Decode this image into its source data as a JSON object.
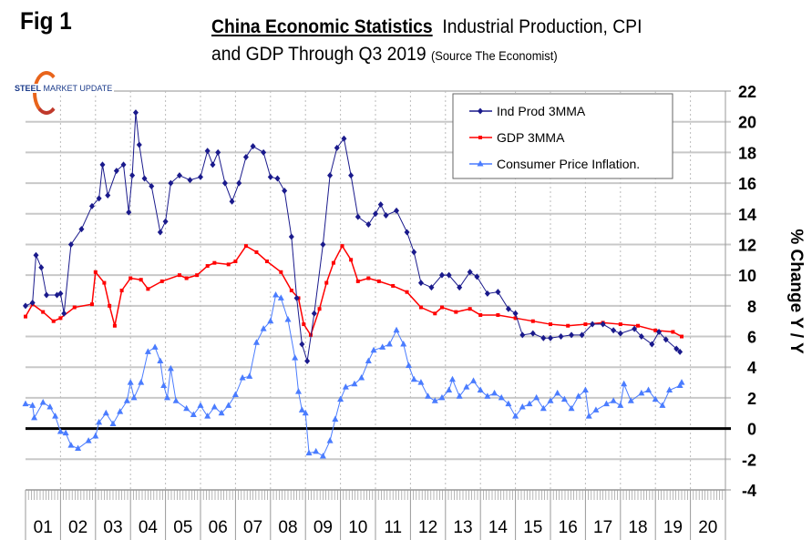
{
  "header": {
    "fig": "Fig 1",
    "title_bold": "China Economic Statistics",
    "title_rest": "Industrial Production, CPI",
    "subtitle": "and GDP Through Q3 2019",
    "source": "(Source The Economist)"
  },
  "logo": {
    "steel": "STEEL",
    "rest": "MARKET UPDATE"
  },
  "chart_data": {
    "type": "line",
    "title": "China Economic Statistics Industrial Production, CPI and GDP Through Q3 2019",
    "ylabel": "% Change Y / Y",
    "ylim": [
      -4,
      22
    ],
    "xlim": [
      2001,
      2021
    ],
    "yticks": [
      "22",
      "20",
      "18",
      "16",
      "14",
      "12",
      "10",
      "8",
      "6",
      "4",
      "2",
      "0",
      "-2",
      "-4"
    ],
    "xticks": [
      "01",
      "02",
      "03",
      "04",
      "05",
      "06",
      "07",
      "08",
      "09",
      "10",
      "11",
      "12",
      "13",
      "14",
      "15",
      "16",
      "17",
      "18",
      "19",
      "20"
    ],
    "grid": true,
    "legend_position": "top-right",
    "series": [
      {
        "name": "Ind Prod 3MMA",
        "color": "#1a1a8c",
        "marker": "diamond",
        "points": [
          [
            2001.0,
            8
          ],
          [
            2001.2,
            8.2
          ],
          [
            2001.3,
            11.3
          ],
          [
            2001.45,
            10.5
          ],
          [
            2001.6,
            8.7
          ],
          [
            2001.9,
            8.7
          ],
          [
            2002.0,
            8.8
          ],
          [
            2002.1,
            7.5
          ],
          [
            2002.3,
            12
          ],
          [
            2002.6,
            13
          ],
          [
            2002.9,
            14.5
          ],
          [
            2003.1,
            15
          ],
          [
            2003.2,
            17.2
          ],
          [
            2003.35,
            15.2
          ],
          [
            2003.6,
            16.8
          ],
          [
            2003.8,
            17.2
          ],
          [
            2003.95,
            14.1
          ],
          [
            2004.05,
            16.5
          ],
          [
            2004.15,
            20.6
          ],
          [
            2004.25,
            18.5
          ],
          [
            2004.4,
            16.3
          ],
          [
            2004.6,
            15.8
          ],
          [
            2004.85,
            12.8
          ],
          [
            2005.0,
            13.5
          ],
          [
            2005.15,
            16.0
          ],
          [
            2005.4,
            16.5
          ],
          [
            2005.7,
            16.2
          ],
          [
            2006.0,
            16.4
          ],
          [
            2006.2,
            18.1
          ],
          [
            2006.35,
            17.2
          ],
          [
            2006.5,
            18.0
          ],
          [
            2006.7,
            16.0
          ],
          [
            2006.9,
            14.8
          ],
          [
            2007.1,
            16.0
          ],
          [
            2007.3,
            17.7
          ],
          [
            2007.5,
            18.4
          ],
          [
            2007.8,
            18.0
          ],
          [
            2008.0,
            16.4
          ],
          [
            2008.2,
            16.3
          ],
          [
            2008.4,
            15.5
          ],
          [
            2008.6,
            12.5
          ],
          [
            2008.75,
            8.5
          ],
          [
            2008.9,
            5.5
          ],
          [
            2009.05,
            4.4
          ],
          [
            2009.25,
            7.5
          ],
          [
            2009.5,
            12.0
          ],
          [
            2009.7,
            16.5
          ],
          [
            2009.9,
            18.3
          ],
          [
            2010.1,
            18.9
          ],
          [
            2010.3,
            16.5
          ],
          [
            2010.5,
            13.8
          ],
          [
            2010.8,
            13.3
          ],
          [
            2011.0,
            14.0
          ],
          [
            2011.15,
            14.6
          ],
          [
            2011.3,
            13.9
          ],
          [
            2011.6,
            14.2
          ],
          [
            2011.9,
            12.8
          ],
          [
            2012.1,
            11.5
          ],
          [
            2012.3,
            9.5
          ],
          [
            2012.6,
            9.2
          ],
          [
            2012.9,
            10.0
          ],
          [
            2013.1,
            10.0
          ],
          [
            2013.4,
            9.2
          ],
          [
            2013.7,
            10.2
          ],
          [
            2013.9,
            9.9
          ],
          [
            2014.2,
            8.8
          ],
          [
            2014.5,
            8.9
          ],
          [
            2014.8,
            7.8
          ],
          [
            2015.0,
            7.5
          ],
          [
            2015.2,
            6.1
          ],
          [
            2015.5,
            6.2
          ],
          [
            2015.8,
            5.9
          ],
          [
            2016.0,
            5.9
          ],
          [
            2016.3,
            6.0
          ],
          [
            2016.6,
            6.1
          ],
          [
            2016.9,
            6.1
          ],
          [
            2017.2,
            6.8
          ],
          [
            2017.5,
            6.8
          ],
          [
            2017.8,
            6.4
          ],
          [
            2018.0,
            6.2
          ],
          [
            2018.4,
            6.5
          ],
          [
            2018.6,
            6.0
          ],
          [
            2018.9,
            5.5
          ],
          [
            2019.1,
            6.3
          ],
          [
            2019.3,
            5.8
          ],
          [
            2019.6,
            5.2
          ],
          [
            2019.7,
            5.0
          ]
        ]
      },
      {
        "name": "GDP 3MMA",
        "color": "#ff0000",
        "marker": "square",
        "points": [
          [
            2001.0,
            7.3
          ],
          [
            2001.2,
            8.1
          ],
          [
            2001.5,
            7.6
          ],
          [
            2001.8,
            7.0
          ],
          [
            2002.0,
            7.2
          ],
          [
            2002.4,
            7.9
          ],
          [
            2002.9,
            8.1
          ],
          [
            2003.0,
            10.2
          ],
          [
            2003.25,
            9.5
          ],
          [
            2003.4,
            8.0
          ],
          [
            2003.55,
            6.7
          ],
          [
            2003.75,
            9.0
          ],
          [
            2004.0,
            9.8
          ],
          [
            2004.3,
            9.7
          ],
          [
            2004.5,
            9.1
          ],
          [
            2004.9,
            9.6
          ],
          [
            2005.4,
            10.0
          ],
          [
            2005.6,
            9.8
          ],
          [
            2005.9,
            10.0
          ],
          [
            2006.2,
            10.6
          ],
          [
            2006.4,
            10.8
          ],
          [
            2006.8,
            10.7
          ],
          [
            2007.0,
            10.9
          ],
          [
            2007.3,
            11.9
          ],
          [
            2007.6,
            11.5
          ],
          [
            2007.9,
            10.9
          ],
          [
            2008.3,
            10.2
          ],
          [
            2008.6,
            9.0
          ],
          [
            2008.8,
            8.5
          ],
          [
            2008.95,
            6.8
          ],
          [
            2009.15,
            6.1
          ],
          [
            2009.4,
            7.8
          ],
          [
            2009.6,
            9.5
          ],
          [
            2009.8,
            10.8
          ],
          [
            2010.05,
            11.9
          ],
          [
            2010.3,
            11.0
          ],
          [
            2010.5,
            9.6
          ],
          [
            2010.8,
            9.8
          ],
          [
            2011.1,
            9.6
          ],
          [
            2011.5,
            9.3
          ],
          [
            2011.9,
            8.9
          ],
          [
            2012.3,
            7.9
          ],
          [
            2012.7,
            7.5
          ],
          [
            2012.9,
            7.9
          ],
          [
            2013.3,
            7.6
          ],
          [
            2013.7,
            7.8
          ],
          [
            2014.0,
            7.4
          ],
          [
            2014.5,
            7.4
          ],
          [
            2015.0,
            7.2
          ],
          [
            2015.5,
            7.0
          ],
          [
            2016.0,
            6.8
          ],
          [
            2016.5,
            6.7
          ],
          [
            2017.0,
            6.8
          ],
          [
            2017.5,
            6.9
          ],
          [
            2018.0,
            6.8
          ],
          [
            2018.5,
            6.7
          ],
          [
            2019.0,
            6.4
          ],
          [
            2019.5,
            6.3
          ],
          [
            2019.75,
            6.0
          ]
        ]
      },
      {
        "name": "Consumer Price Inflation.",
        "color": "#4a7cff",
        "marker": "triangle",
        "points": [
          [
            2001.0,
            1.6
          ],
          [
            2001.2,
            1.5
          ],
          [
            2001.25,
            0.7
          ],
          [
            2001.5,
            1.7
          ],
          [
            2001.7,
            1.4
          ],
          [
            2001.85,
            0.8
          ],
          [
            2002.0,
            -0.2
          ],
          [
            2002.15,
            -0.3
          ],
          [
            2002.3,
            -1.1
          ],
          [
            2002.5,
            -1.3
          ],
          [
            2002.8,
            -0.8
          ],
          [
            2003.0,
            -0.5
          ],
          [
            2003.1,
            0.4
          ],
          [
            2003.3,
            1.0
          ],
          [
            2003.5,
            0.3
          ],
          [
            2003.7,
            1.1
          ],
          [
            2003.9,
            1.8
          ],
          [
            2004.0,
            3.0
          ],
          [
            2004.1,
            2.0
          ],
          [
            2004.3,
            3.0
          ],
          [
            2004.5,
            5.0
          ],
          [
            2004.7,
            5.3
          ],
          [
            2004.85,
            4.4
          ],
          [
            2004.95,
            2.8
          ],
          [
            2005.05,
            2.0
          ],
          [
            2005.15,
            3.9
          ],
          [
            2005.3,
            1.8
          ],
          [
            2005.6,
            1.3
          ],
          [
            2005.8,
            0.9
          ],
          [
            2006.0,
            1.5
          ],
          [
            2006.2,
            0.8
          ],
          [
            2006.4,
            1.4
          ],
          [
            2006.6,
            1.0
          ],
          [
            2006.8,
            1.5
          ],
          [
            2007.0,
            2.2
          ],
          [
            2007.2,
            3.3
          ],
          [
            2007.4,
            3.4
          ],
          [
            2007.6,
            5.6
          ],
          [
            2007.8,
            6.5
          ],
          [
            2008.0,
            7.0
          ],
          [
            2008.15,
            8.7
          ],
          [
            2008.3,
            8.5
          ],
          [
            2008.5,
            7.1
          ],
          [
            2008.7,
            4.6
          ],
          [
            2008.8,
            2.4
          ],
          [
            2008.9,
            1.2
          ],
          [
            2009.0,
            1.0
          ],
          [
            2009.1,
            -1.6
          ],
          [
            2009.3,
            -1.5
          ],
          [
            2009.5,
            -1.8
          ],
          [
            2009.7,
            -0.8
          ],
          [
            2009.85,
            0.6
          ],
          [
            2010.0,
            1.9
          ],
          [
            2010.15,
            2.7
          ],
          [
            2010.4,
            2.9
          ],
          [
            2010.6,
            3.3
          ],
          [
            2010.8,
            4.4
          ],
          [
            2010.95,
            5.1
          ],
          [
            2011.2,
            5.3
          ],
          [
            2011.4,
            5.5
          ],
          [
            2011.6,
            6.4
          ],
          [
            2011.8,
            5.5
          ],
          [
            2011.95,
            4.1
          ],
          [
            2012.1,
            3.2
          ],
          [
            2012.3,
            3.0
          ],
          [
            2012.5,
            2.1
          ],
          [
            2012.7,
            1.8
          ],
          [
            2012.9,
            2.0
          ],
          [
            2013.1,
            2.5
          ],
          [
            2013.2,
            3.2
          ],
          [
            2013.4,
            2.1
          ],
          [
            2013.6,
            2.7
          ],
          [
            2013.8,
            3.1
          ],
          [
            2014.0,
            2.5
          ],
          [
            2014.2,
            2.1
          ],
          [
            2014.4,
            2.3
          ],
          [
            2014.6,
            2.0
          ],
          [
            2014.8,
            1.6
          ],
          [
            2015.0,
            0.8
          ],
          [
            2015.2,
            1.4
          ],
          [
            2015.4,
            1.6
          ],
          [
            2015.6,
            2.0
          ],
          [
            2015.8,
            1.3
          ],
          [
            2016.0,
            1.8
          ],
          [
            2016.2,
            2.3
          ],
          [
            2016.4,
            1.9
          ],
          [
            2016.6,
            1.3
          ],
          [
            2016.8,
            2.1
          ],
          [
            2017.0,
            2.5
          ],
          [
            2017.1,
            0.8
          ],
          [
            2017.3,
            1.2
          ],
          [
            2017.6,
            1.6
          ],
          [
            2017.8,
            1.8
          ],
          [
            2018.0,
            1.5
          ],
          [
            2018.1,
            2.9
          ],
          [
            2018.3,
            1.8
          ],
          [
            2018.6,
            2.3
          ],
          [
            2018.8,
            2.5
          ],
          [
            2019.0,
            1.9
          ],
          [
            2019.2,
            1.5
          ],
          [
            2019.4,
            2.5
          ],
          [
            2019.7,
            2.8
          ],
          [
            2019.75,
            3.0
          ]
        ]
      }
    ]
  }
}
